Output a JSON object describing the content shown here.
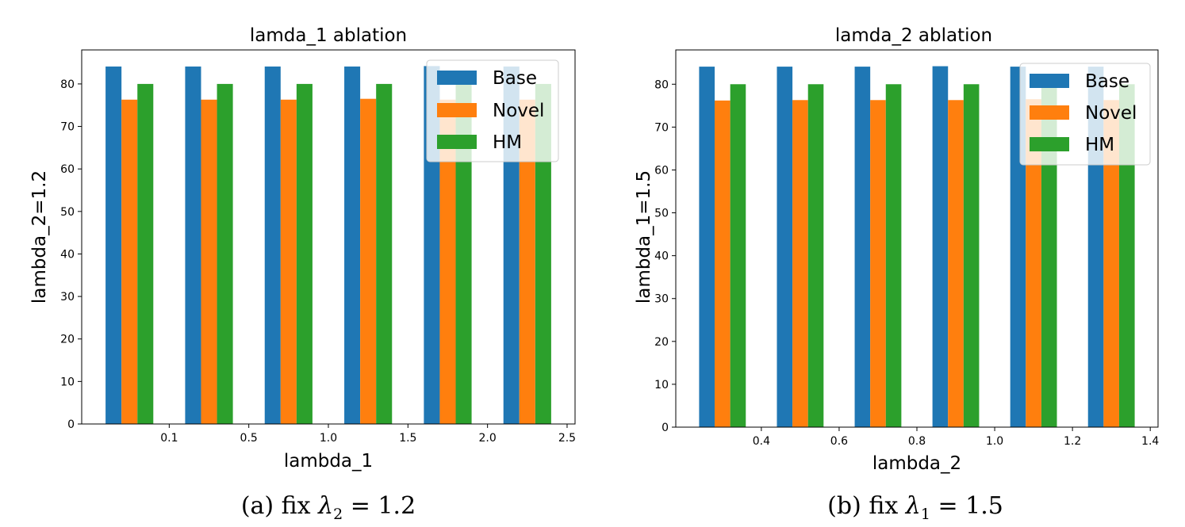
{
  "chart_data": [
    {
      "type": "bar",
      "title": "lamda_1 ablation",
      "xlabel": "lambda_1",
      "ylabel": "lambda_2=1.2",
      "xticks": [
        0.5,
        1.5,
        2.5,
        3.5,
        4.5,
        5.5
      ],
      "xtick_labels": [
        "0.1",
        "0.5",
        "1.0",
        "1.5",
        "2.0",
        "2.5"
      ],
      "yticks": [
        0,
        10,
        20,
        30,
        40,
        50,
        60,
        70,
        80
      ],
      "ylim": [
        0,
        88
      ],
      "xlim": [
        -0.6,
        5.6
      ],
      "bar_width": 0.2,
      "positions": [
        0,
        1,
        2,
        3,
        4,
        5
      ],
      "series": [
        {
          "name": "Base",
          "color": "#1f77b4",
          "offset": -0.2,
          "values": [
            84.1,
            84.1,
            84.1,
            84.1,
            84.2,
            84.1
          ]
        },
        {
          "name": "Novel",
          "color": "#ff7f0e",
          "offset": 0.0,
          "values": [
            76.3,
            76.3,
            76.3,
            76.5,
            76.3,
            76.3
          ]
        },
        {
          "name": "HM",
          "color": "#2ca02c",
          "offset": 0.2,
          "values": [
            80.0,
            80.0,
            80.0,
            80.0,
            80.0,
            80.0
          ]
        }
      ],
      "legend_position": "upper right",
      "caption": {
        "prefix": "(a) fix ",
        "symbol": "λ",
        "sub": "2",
        "suffix": " = 1.2"
      }
    },
    {
      "type": "bar",
      "title": "lamda_2 ablation",
      "xlabel": "lambda_2",
      "ylabel": "lambda_1=1.5",
      "xticks": [
        0.5,
        1.5,
        2.5,
        3.5,
        4.5,
        5.5
      ],
      "xtick_labels": [
        "0.4",
        "0.6",
        "0.8",
        "1.0",
        "1.2",
        "1.4"
      ],
      "yticks": [
        0,
        10,
        20,
        30,
        40,
        50,
        60,
        70,
        80
      ],
      "ylim": [
        0,
        88
      ],
      "xlim": [
        -0.6,
        5.6
      ],
      "bar_width": 0.2,
      "positions": [
        0,
        1,
        2,
        3,
        4,
        5
      ],
      "series": [
        {
          "name": "Base",
          "color": "#1f77b4",
          "offset": -0.2,
          "values": [
            84.1,
            84.1,
            84.1,
            84.2,
            84.1,
            84.1
          ]
        },
        {
          "name": "Novel",
          "color": "#ff7f0e",
          "offset": 0.0,
          "values": [
            76.2,
            76.3,
            76.3,
            76.3,
            76.5,
            76.3
          ]
        },
        {
          "name": "HM",
          "color": "#2ca02c",
          "offset": 0.2,
          "values": [
            80.0,
            80.0,
            80.0,
            80.0,
            80.0,
            80.0
          ]
        }
      ],
      "legend_position": "upper right",
      "caption": {
        "prefix": "(b) fix ",
        "symbol": "λ",
        "sub": "1",
        "suffix": " = 1.5"
      }
    }
  ]
}
